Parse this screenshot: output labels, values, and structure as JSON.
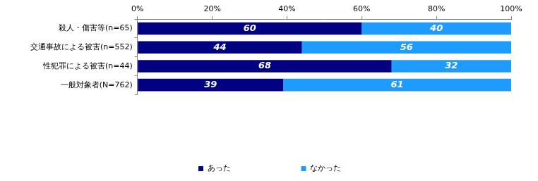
{
  "chart_data": {
    "type": "bar",
    "orientation": "horizontal",
    "stacked": true,
    "data_labels": true,
    "grid": false,
    "legend": "bottom",
    "categories": [
      "殺人・傷害等(n=65)",
      "交通事故による被害(n=552)",
      "性犯罪による被害(n=44)",
      "一般対象者(N=762)"
    ],
    "series": [
      {
        "name": "あった",
        "color": "#000080",
        "values": [
          60,
          44,
          68,
          39
        ]
      },
      {
        "name": "なかった",
        "color": "#1e9bff",
        "values": [
          40,
          56,
          32,
          61
        ]
      }
    ],
    "xlim": [
      0,
      100
    ],
    "xticks": [
      {
        "value": 0,
        "label": "0%"
      },
      {
        "value": 20,
        "label": "20%"
      },
      {
        "value": 40,
        "label": "40%"
      },
      {
        "value": 60,
        "label": "60%"
      },
      {
        "value": 80,
        "label": "80%"
      },
      {
        "value": 100,
        "label": "100%"
      }
    ]
  }
}
